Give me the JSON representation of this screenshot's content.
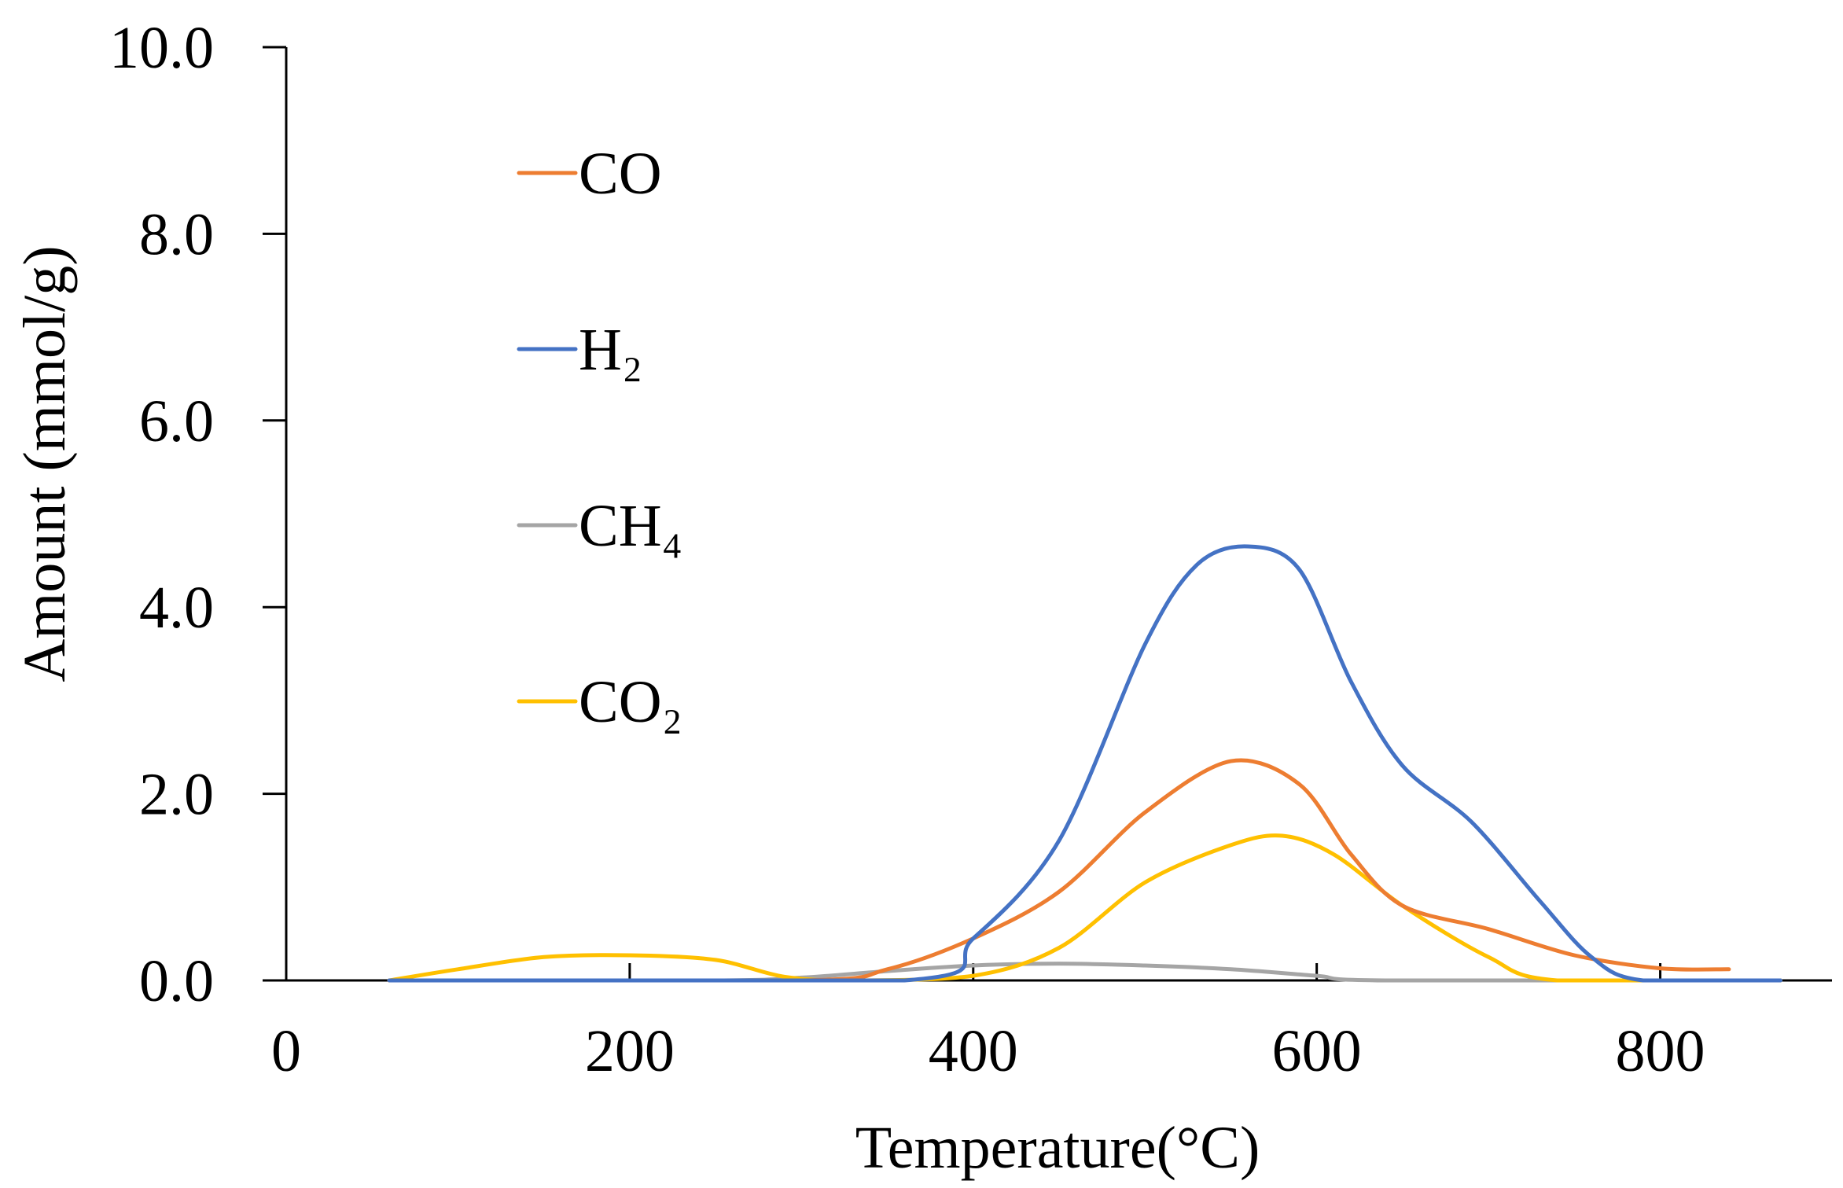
{
  "chart_data": {
    "type": "line",
    "title": "",
    "xlabel": "Temperature(°C)",
    "ylabel": "Amount (mmol/g)",
    "xlim": [
      0,
      900
    ],
    "ylim": [
      0,
      10
    ],
    "x_ticks": [
      0,
      200,
      400,
      600,
      800
    ],
    "x_tick_labels": [
      "0",
      "200",
      "400",
      "600",
      "800"
    ],
    "y_ticks": [
      0,
      2,
      4,
      6,
      8,
      10
    ],
    "y_tick_labels": [
      "0.0",
      "2.0",
      "4.0",
      "6.0",
      "8.0",
      "10.0"
    ],
    "grid": false,
    "legend_position": "upper-left",
    "series": [
      {
        "name": "CO",
        "color": "#ED7D31",
        "x": [
          60,
          300,
          350,
          400,
          450,
          500,
          550,
          590,
          620,
          650,
          700,
          750,
          800,
          840
        ],
        "y": [
          0,
          0,
          0.12,
          0.45,
          0.95,
          1.8,
          2.35,
          2.1,
          1.35,
          0.8,
          0.55,
          0.27,
          0.13,
          0.12
        ]
      },
      {
        "name": "H₂",
        "color": "#4472C4",
        "x": [
          60,
          360,
          400,
          450,
          500,
          530,
          560,
          590,
          620,
          650,
          690,
          730,
          760,
          790,
          870
        ],
        "y": [
          0,
          0,
          0.45,
          1.5,
          3.6,
          4.45,
          4.65,
          4.4,
          3.2,
          2.3,
          1.7,
          0.85,
          0.25,
          0,
          0
        ]
      },
      {
        "name": "CH₄",
        "color": "#A5A5A5",
        "x": [
          60,
          250,
          300,
          350,
          400,
          450,
          500,
          550,
          600,
          640,
          870
        ],
        "y": [
          0,
          0,
          0.03,
          0.1,
          0.16,
          0.18,
          0.16,
          0.12,
          0.05,
          0,
          0
        ]
      },
      {
        "name": "CO₂",
        "color": "#FFC000",
        "x": [
          60,
          100,
          150,
          200,
          250,
          290,
          330,
          400,
          450,
          500,
          550,
          580,
          610,
          650,
          700,
          740,
          870
        ],
        "y": [
          0,
          0.12,
          0.25,
          0.27,
          0.22,
          0.04,
          0,
          0.05,
          0.35,
          1.05,
          1.45,
          1.55,
          1.35,
          0.8,
          0.25,
          0,
          0
        ]
      }
    ]
  }
}
